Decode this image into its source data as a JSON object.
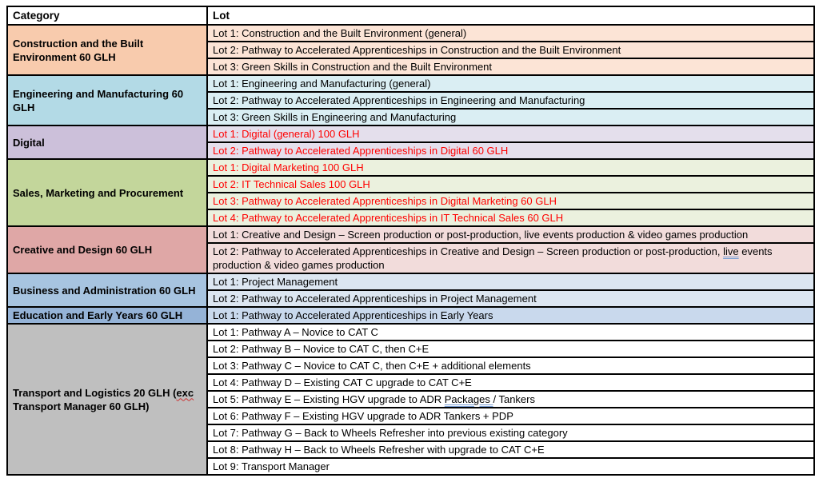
{
  "header": {
    "category": "Category",
    "lot": "Lot"
  },
  "colors": {
    "border": "#000000",
    "red_lot_text": "#FF0000",
    "black_lot_text": "#000000"
  },
  "sections": [
    {
      "category": "Construction and the Built Environment 60 GLH",
      "category_bg": "#F8CBAD",
      "lot_bg": "#FCE4D6",
      "lot_text_color": "#000000",
      "lots": [
        {
          "text": "Lot 1: Construction and the Built Environment (general)"
        },
        {
          "text": "Lot 2: Pathway to Accelerated Apprenticeships in Construction and the Built Environment"
        },
        {
          "text": "Lot 3: Green Skills in Construction and the Built Environment"
        }
      ]
    },
    {
      "category": "Engineering and Manufacturing 60 GLH",
      "category_bg": "#B3DAE6",
      "lot_bg": "#DAEEF3",
      "lot_text_color": "#000000",
      "lots": [
        {
          "text": "Lot 1: Engineering and Manufacturing (general)"
        },
        {
          "text": "Lot 2: Pathway to Accelerated Apprenticeships in Engineering and Manufacturing"
        },
        {
          "text": "Lot 3: Green Skills in Engineering and Manufacturing"
        }
      ]
    },
    {
      "category": "Digital",
      "category_bg": "#CCC0DA",
      "lot_bg": "#E4DFEC",
      "lot_text_color": "#FF0000",
      "lots": [
        {
          "text": "Lot 1: Digital (general) 100 GLH"
        },
        {
          "text": "Lot 2: Pathway to Accelerated Apprenticeships in Digital 60 GLH"
        }
      ]
    },
    {
      "category": "Sales, Marketing and Procurement",
      "category_bg": "#C3D69B",
      "lot_bg": "#EBF1DE",
      "lot_text_color": "#FF0000",
      "lots": [
        {
          "text": "Lot 1: Digital Marketing 100 GLH"
        },
        {
          "text": "Lot 2: IT Technical Sales 100 GLH"
        },
        {
          "text": "Lot 3: Pathway to Accelerated Apprenticeships in Digital Marketing 60 GLH"
        },
        {
          "text": "Lot 4: Pathway to Accelerated Apprenticeships in IT Technical Sales 60 GLH"
        }
      ]
    },
    {
      "category": "Creative and Design 60 GLH",
      "category_bg": "#DFA7A6",
      "lot_bg": "#F2DCDB",
      "lot_text_color": "#000000",
      "lots": [
        {
          "text": "Lot 1: Creative and Design – Screen production or post-production, live events production & video games production"
        },
        {
          "text": "Lot 2: Pathway to Accelerated Apprenticeships in Creative and Design – Screen production or post-production, live events production & video games production",
          "mark": "live",
          "mark_class": "u-double-blue"
        }
      ]
    },
    {
      "category": "Business and Administration 60 GLH",
      "category_bg": "#A7C4E0",
      "lot_bg": "#DCE6F1",
      "lot_text_color": "#000000",
      "lots": [
        {
          "text": "Lot 1: Project Management"
        },
        {
          "text": "Lot 2: Pathway to Accelerated Apprenticeships in Project Management"
        }
      ]
    },
    {
      "category": "Education and Early Years 60 GLH",
      "category_bg": "#95B3D7",
      "lot_bg": "#C9D9ED",
      "lot_text_color": "#000000",
      "lots": [
        {
          "text": "Lot 1: Pathway to Accelerated Apprenticeships in Early Years"
        }
      ]
    },
    {
      "category": "Transport and Logistics 20 GLH (exc Transport Manager 60 GLH)",
      "category_mark": "exc",
      "category_mark_class": "u-wavy-red",
      "category_bg": "#BFBFBF",
      "lot_bg": "#FFFFFF",
      "lot_text_color": "#000000",
      "lots": [
        {
          "text": "Lot 1: Pathway A – Novice to CAT C"
        },
        {
          "text": "Lot 2: Pathway B – Novice to CAT C, then C+E"
        },
        {
          "text": "Lot 3: Pathway C – Novice to CAT C, then C+E + additional elements"
        },
        {
          "text": "Lot 4: Pathway D – Existing CAT C upgrade to CAT C+E"
        },
        {
          "text": "Lot 5: Pathway E – Existing HGV upgrade to ADR Packages / Tankers",
          "mark": "Packages ",
          "mark_class": "u-double-blue"
        },
        {
          "text": "Lot 6: Pathway F – Existing HGV upgrade to ADR Tankers + PDP"
        },
        {
          "text": "Lot 7: Pathway G – Back to Wheels Refresher into previous existing category"
        },
        {
          "text": "Lot 8: Pathway H – Back to Wheels Refresher with upgrade to CAT C+E"
        },
        {
          "text": "Lot 9: Transport Manager"
        }
      ]
    }
  ]
}
